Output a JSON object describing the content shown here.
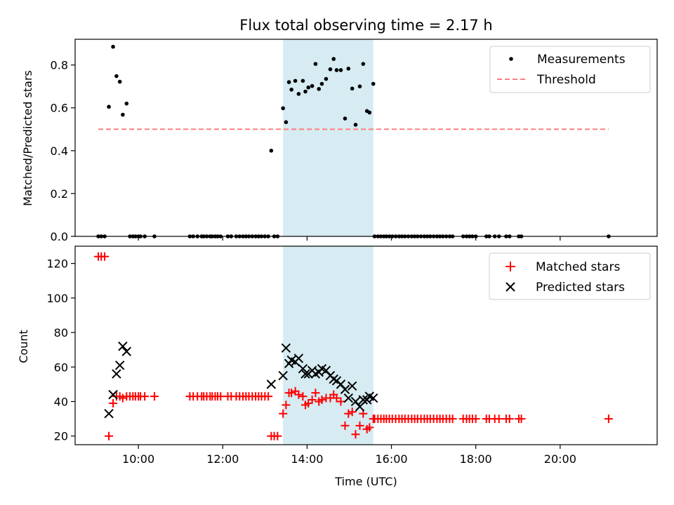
{
  "chart_data": [
    {
      "type": "scatter",
      "title": "Flux total observing time = 2.17 h",
      "ylabel": "Matched/Predicted stars",
      "xlabel": "",
      "xlim": [
        8.5,
        22.3
      ],
      "ylim": [
        0,
        0.92
      ],
      "yticks": [
        0.0,
        0.2,
        0.4,
        0.6,
        0.8
      ],
      "ytick_labels": [
        "0.0",
        "0.2",
        "0.4",
        "0.6",
        "0.8"
      ],
      "xticks": [
        10,
        12,
        14,
        16,
        18,
        20
      ],
      "xtick_labels": [],
      "highlight": {
        "x0": 13.43,
        "x1": 15.57,
        "color": "#add8e6"
      },
      "legend": {
        "position": "top-right",
        "entries": [
          "Measurements",
          "Threshold"
        ]
      },
      "threshold": {
        "name": "Threshold",
        "y": 0.5,
        "x0": 9.05,
        "x1": 21.15,
        "color": "#ff7f7f",
        "style": "dashed"
      },
      "series": [
        {
          "name": "Measurements",
          "marker": "dot",
          "color": "#000000",
          "points": [
            [
              9.05,
              0
            ],
            [
              9.12,
              0
            ],
            [
              9.2,
              0
            ],
            [
              9.3,
              0.605
            ],
            [
              9.4,
              0.885
            ],
            [
              9.48,
              0.748
            ],
            [
              9.56,
              0.722
            ],
            [
              9.63,
              0.568
            ],
            [
              9.72,
              0.62
            ],
            [
              9.8,
              0
            ],
            [
              9.87,
              0
            ],
            [
              9.93,
              0
            ],
            [
              10.0,
              0
            ],
            [
              10.05,
              0
            ],
            [
              10.15,
              0
            ],
            [
              10.38,
              0
            ],
            [
              11.22,
              0
            ],
            [
              11.3,
              0
            ],
            [
              11.4,
              0
            ],
            [
              11.5,
              0
            ],
            [
              11.55,
              0
            ],
            [
              11.62,
              0
            ],
            [
              11.7,
              0
            ],
            [
              11.75,
              0
            ],
            [
              11.82,
              0
            ],
            [
              11.88,
              0
            ],
            [
              11.95,
              0
            ],
            [
              12.12,
              0
            ],
            [
              12.2,
              0
            ],
            [
              12.32,
              0
            ],
            [
              12.4,
              0
            ],
            [
              12.48,
              0
            ],
            [
              12.55,
              0
            ],
            [
              12.62,
              0
            ],
            [
              12.7,
              0
            ],
            [
              12.78,
              0
            ],
            [
              12.85,
              0
            ],
            [
              12.92,
              0
            ],
            [
              13.0,
              0
            ],
            [
              13.08,
              0
            ],
            [
              13.15,
              0.4
            ],
            [
              13.22,
              0
            ],
            [
              13.3,
              0
            ],
            [
              13.43,
              0.598
            ],
            [
              13.5,
              0.533
            ],
            [
              13.57,
              0.72
            ],
            [
              13.63,
              0.685
            ],
            [
              13.72,
              0.726
            ],
            [
              13.8,
              0.665
            ],
            [
              13.9,
              0.726
            ],
            [
              13.96,
              0.676
            ],
            [
              14.03,
              0.695
            ],
            [
              14.12,
              0.702
            ],
            [
              14.2,
              0.805
            ],
            [
              14.28,
              0.688
            ],
            [
              14.35,
              0.712
            ],
            [
              14.45,
              0.735
            ],
            [
              14.55,
              0.78
            ],
            [
              14.63,
              0.828
            ],
            [
              14.7,
              0.776
            ],
            [
              14.8,
              0.776
            ],
            [
              14.9,
              0.55
            ],
            [
              14.98,
              0.783
            ],
            [
              15.07,
              0.69
            ],
            [
              15.15,
              0.521
            ],
            [
              15.25,
              0.7
            ],
            [
              15.33,
              0.805
            ],
            [
              15.42,
              0.585
            ],
            [
              15.48,
              0.578
            ],
            [
              15.57,
              0.712
            ],
            [
              15.6,
              0
            ],
            [
              15.68,
              0
            ],
            [
              15.75,
              0
            ],
            [
              15.82,
              0
            ],
            [
              15.88,
              0
            ],
            [
              15.95,
              0
            ],
            [
              16.02,
              0
            ],
            [
              16.1,
              0
            ],
            [
              16.18,
              0
            ],
            [
              16.25,
              0
            ],
            [
              16.32,
              0
            ],
            [
              16.4,
              0
            ],
            [
              16.48,
              0
            ],
            [
              16.55,
              0
            ],
            [
              16.62,
              0
            ],
            [
              16.7,
              0
            ],
            [
              16.78,
              0
            ],
            [
              16.85,
              0
            ],
            [
              16.92,
              0
            ],
            [
              17.0,
              0
            ],
            [
              17.08,
              0
            ],
            [
              17.15,
              0
            ],
            [
              17.22,
              0
            ],
            [
              17.3,
              0
            ],
            [
              17.38,
              0
            ],
            [
              17.45,
              0
            ],
            [
              17.7,
              0
            ],
            [
              17.78,
              0
            ],
            [
              17.85,
              0
            ],
            [
              17.92,
              0
            ],
            [
              18.0,
              0
            ],
            [
              18.25,
              0
            ],
            [
              18.32,
              0
            ],
            [
              18.45,
              0
            ],
            [
              18.55,
              0
            ],
            [
              18.72,
              0
            ],
            [
              18.8,
              0
            ],
            [
              19.02,
              0
            ],
            [
              19.08,
              0
            ],
            [
              21.15,
              0
            ]
          ]
        }
      ]
    },
    {
      "type": "scatter",
      "title": "",
      "ylabel": "Count",
      "xlabel": "Time (UTC)",
      "xlim": [
        8.5,
        22.3
      ],
      "ylim": [
        15,
        130
      ],
      "yticks": [
        20,
        40,
        60,
        80,
        100,
        120
      ],
      "ytick_labels": [
        "20",
        "40",
        "60",
        "80",
        "100",
        "120"
      ],
      "xticks": [
        10,
        12,
        14,
        16,
        18,
        20
      ],
      "xtick_labels": [
        "10:00",
        "12:00",
        "14:00",
        "16:00",
        "18:00",
        "20:00"
      ],
      "highlight": {
        "x0": 13.43,
        "x1": 15.57,
        "color": "#add8e6"
      },
      "legend": {
        "position": "top-right",
        "entries": [
          "Matched stars",
          "Predicted stars"
        ]
      },
      "series": [
        {
          "name": "Matched stars",
          "marker": "plus",
          "color": "#ff0000",
          "points": [
            [
              9.05,
              124
            ],
            [
              9.12,
              124
            ],
            [
              9.2,
              124
            ],
            [
              9.3,
              20
            ],
            [
              9.4,
              39
            ],
            [
              9.48,
              43
            ],
            [
              9.56,
              43
            ],
            [
              9.63,
              42
            ],
            [
              9.72,
              43
            ],
            [
              9.8,
              43
            ],
            [
              9.87,
              43
            ],
            [
              9.93,
              43
            ],
            [
              10.0,
              43
            ],
            [
              10.05,
              43
            ],
            [
              10.15,
              43
            ],
            [
              10.38,
              43
            ],
            [
              11.22,
              43
            ],
            [
              11.3,
              43
            ],
            [
              11.4,
              43
            ],
            [
              11.5,
              43
            ],
            [
              11.55,
              43
            ],
            [
              11.62,
              43
            ],
            [
              11.7,
              43
            ],
            [
              11.75,
              43
            ],
            [
              11.82,
              43
            ],
            [
              11.88,
              43
            ],
            [
              11.95,
              43
            ],
            [
              12.12,
              43
            ],
            [
              12.2,
              43
            ],
            [
              12.32,
              43
            ],
            [
              12.4,
              43
            ],
            [
              12.48,
              43
            ],
            [
              12.55,
              43
            ],
            [
              12.62,
              43
            ],
            [
              12.7,
              43
            ],
            [
              12.78,
              43
            ],
            [
              12.85,
              43
            ],
            [
              12.92,
              43
            ],
            [
              13.0,
              43
            ],
            [
              13.08,
              43
            ],
            [
              13.15,
              20
            ],
            [
              13.22,
              20
            ],
            [
              13.3,
              20
            ],
            [
              13.43,
              33
            ],
            [
              13.5,
              38
            ],
            [
              13.57,
              45
            ],
            [
              13.63,
              45
            ],
            [
              13.72,
              46
            ],
            [
              13.8,
              44
            ],
            [
              13.9,
              43
            ],
            [
              13.96,
              38
            ],
            [
              14.03,
              39
            ],
            [
              14.12,
              41
            ],
            [
              14.2,
              45
            ],
            [
              14.28,
              40
            ],
            [
              14.35,
              41
            ],
            [
              14.45,
              42
            ],
            [
              14.55,
              42
            ],
            [
              14.63,
              44
            ],
            [
              14.7,
              42
            ],
            [
              14.8,
              40
            ],
            [
              14.9,
              26
            ],
            [
              14.98,
              33
            ],
            [
              15.07,
              34
            ],
            [
              15.15,
              21
            ],
            [
              15.25,
              26
            ],
            [
              15.33,
              33
            ],
            [
              15.42,
              24
            ],
            [
              15.48,
              25
            ],
            [
              15.57,
              30
            ],
            [
              15.6,
              30
            ],
            [
              15.68,
              30
            ],
            [
              15.75,
              30
            ],
            [
              15.82,
              30
            ],
            [
              15.88,
              30
            ],
            [
              15.95,
              30
            ],
            [
              16.02,
              30
            ],
            [
              16.1,
              30
            ],
            [
              16.18,
              30
            ],
            [
              16.25,
              30
            ],
            [
              16.32,
              30
            ],
            [
              16.4,
              30
            ],
            [
              16.48,
              30
            ],
            [
              16.55,
              30
            ],
            [
              16.62,
              30
            ],
            [
              16.7,
              30
            ],
            [
              16.78,
              30
            ],
            [
              16.85,
              30
            ],
            [
              16.92,
              30
            ],
            [
              17.0,
              30
            ],
            [
              17.08,
              30
            ],
            [
              17.15,
              30
            ],
            [
              17.22,
              30
            ],
            [
              17.3,
              30
            ],
            [
              17.38,
              30
            ],
            [
              17.45,
              30
            ],
            [
              17.7,
              30
            ],
            [
              17.78,
              30
            ],
            [
              17.85,
              30
            ],
            [
              17.92,
              30
            ],
            [
              18.0,
              30
            ],
            [
              18.25,
              30
            ],
            [
              18.32,
              30
            ],
            [
              18.45,
              30
            ],
            [
              18.55,
              30
            ],
            [
              18.72,
              30
            ],
            [
              18.8,
              30
            ],
            [
              19.02,
              30
            ],
            [
              19.08,
              30
            ],
            [
              21.15,
              30
            ]
          ]
        },
        {
          "name": "Predicted stars",
          "marker": "x",
          "color": "#000000",
          "points": [
            [
              9.3,
              33
            ],
            [
              9.4,
              44
            ],
            [
              9.48,
              56
            ],
            [
              9.56,
              61
            ],
            [
              9.63,
              72
            ],
            [
              9.72,
              69
            ],
            [
              13.15,
              50
            ],
            [
              13.43,
              55
            ],
            [
              13.5,
              71
            ],
            [
              13.57,
              62
            ],
            [
              13.63,
              64
            ],
            [
              13.72,
              63
            ],
            [
              13.8,
              65
            ],
            [
              13.9,
              59
            ],
            [
              13.96,
              56
            ],
            [
              14.03,
              56
            ],
            [
              14.12,
              58
            ],
            [
              14.2,
              56
            ],
            [
              14.28,
              57
            ],
            [
              14.35,
              59
            ],
            [
              14.45,
              58
            ],
            [
              14.55,
              55
            ],
            [
              14.63,
              53
            ],
            [
              14.7,
              52
            ],
            [
              14.8,
              50
            ],
            [
              14.9,
              47
            ],
            [
              14.98,
              42
            ],
            [
              15.07,
              49
            ],
            [
              15.15,
              40
            ],
            [
              15.25,
              37
            ],
            [
              15.33,
              41
            ],
            [
              15.42,
              41
            ],
            [
              15.48,
              43
            ],
            [
              15.57,
              42
            ]
          ]
        }
      ]
    }
  ]
}
